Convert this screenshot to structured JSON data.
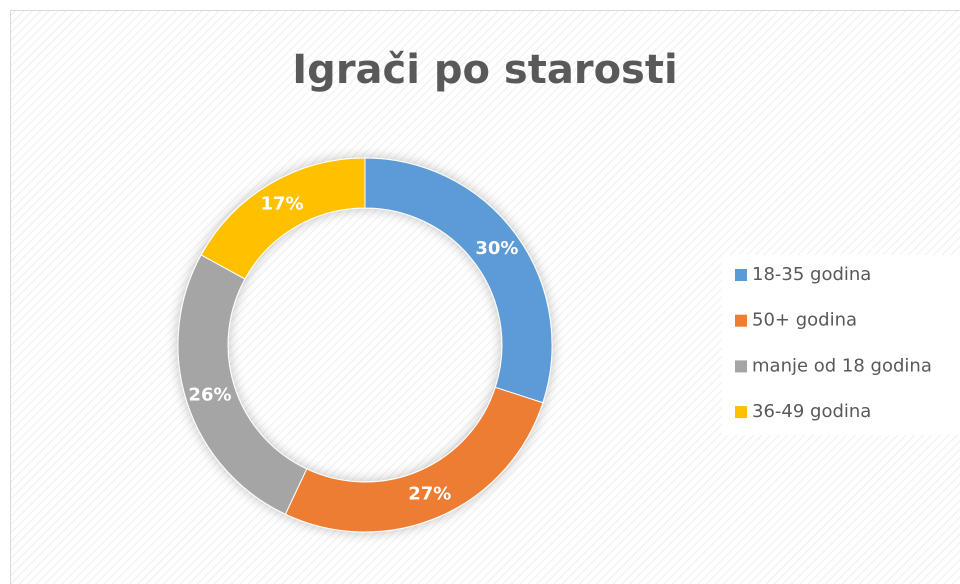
{
  "chart_data": {
    "type": "donut",
    "title": "Igrači po starosti",
    "categories": [
      "18-35 godina",
      "50+ godina",
      "manje od 18 godina",
      "36-49 godina"
    ],
    "values": [
      30,
      27,
      26,
      17
    ],
    "value_labels": [
      "30%",
      "27%",
      "26%",
      "17%"
    ],
    "colors": [
      "#5b9bd5",
      "#ed7d31",
      "#a5a5a5",
      "#ffc000"
    ],
    "legend": "right"
  }
}
